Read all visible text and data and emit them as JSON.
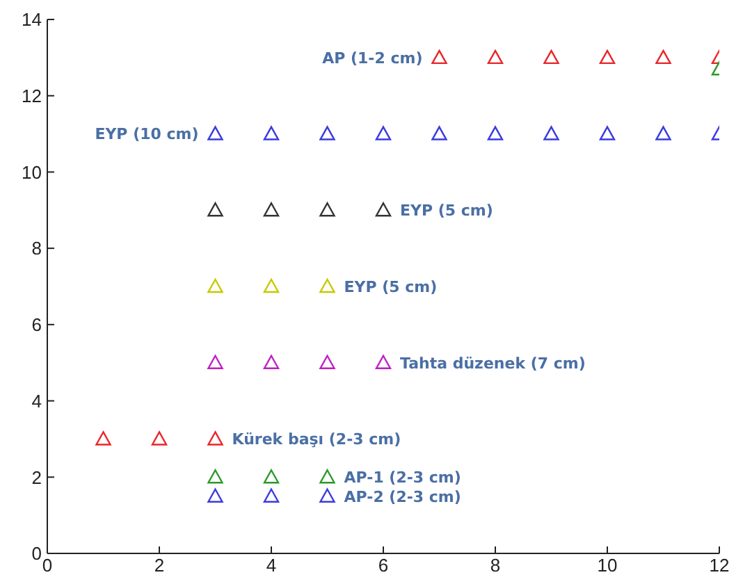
{
  "chart_data": {
    "type": "scatter",
    "marker": "triangle",
    "xlim": [
      0,
      12
    ],
    "ylim": [
      0,
      14
    ],
    "xticks": [
      0,
      2,
      4,
      6,
      8,
      10,
      12
    ],
    "yticks": [
      0,
      2,
      4,
      6,
      8,
      10,
      12,
      14
    ],
    "grid": false,
    "series": [
      {
        "name": "AP (1-2 cm)",
        "color": "#e8262a",
        "x": [
          7,
          8,
          9,
          10,
          11,
          12
        ],
        "values": [
          13,
          13,
          13,
          13,
          13,
          13
        ]
      },
      {
        "color": "#2a9a2a",
        "x": [
          12
        ],
        "values": [
          12.7
        ]
      },
      {
        "name": "EYP (10 cm)",
        "color": "#3a3ae0",
        "x": [
          3,
          4,
          5,
          6,
          7,
          8,
          9,
          10,
          11,
          12
        ],
        "values": [
          11,
          11,
          11,
          11,
          11,
          11,
          11,
          11,
          11,
          11
        ]
      },
      {
        "name": "EYP (5 cm)",
        "color": "#333333",
        "x": [
          3,
          4,
          5,
          6
        ],
        "values": [
          9,
          9,
          9,
          9
        ]
      },
      {
        "name": "EYP (5 cm)",
        "color": "#c8c800",
        "x": [
          3,
          4,
          5
        ],
        "values": [
          7,
          7,
          7
        ]
      },
      {
        "name": "Tahta düzenek (7 cm)",
        "color": "#c020c0",
        "x": [
          3,
          4,
          5,
          6
        ],
        "values": [
          5,
          5,
          5,
          5
        ]
      },
      {
        "name": "Kürek başı (2-3 cm)",
        "color": "#e8262a",
        "x": [
          1,
          2,
          3
        ],
        "values": [
          3,
          3,
          3
        ]
      },
      {
        "name": "AP-1 (2-3 cm)",
        "color": "#2a9a2a",
        "x": [
          3,
          4,
          5
        ],
        "values": [
          2,
          2,
          2
        ]
      },
      {
        "name": "AP-2 (2-3 cm)",
        "color": "#3a3ae0",
        "x": [
          3,
          4,
          5
        ],
        "values": [
          1.5,
          1.5,
          1.5
        ]
      }
    ]
  }
}
